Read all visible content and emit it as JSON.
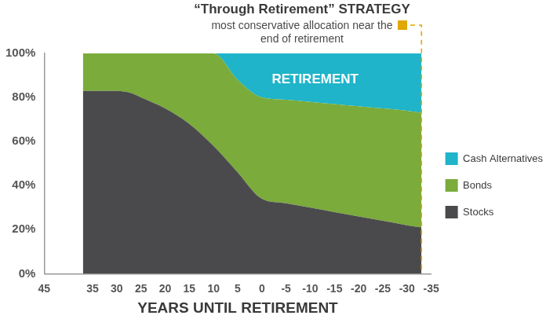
{
  "chart_data": {
    "type": "area",
    "title": "“Through Retirement” STRATEGY",
    "subtitle": "most conservative allocation near the end of retirement",
    "annotations": [
      "RETIREMENT"
    ],
    "x_label": "YEARS UNTIL RETIREMENT",
    "x": [
      37,
      30,
      27,
      25,
      20,
      15,
      10,
      5,
      0,
      -5,
      -10,
      -15,
      -20,
      -25,
      -30,
      -33
    ],
    "series": [
      {
        "name": "Stocks",
        "color": "#4a4a4c",
        "values": [
          83,
          83,
          82,
          80,
          75,
          68,
          58,
          46,
          34,
          32,
          30,
          28,
          26,
          24,
          22,
          21
        ]
      },
      {
        "name": "Bonds",
        "color": "#7aab3b",
        "values": [
          17,
          17,
          18,
          20,
          25,
          32,
          42,
          42,
          46,
          47,
          48,
          49,
          50,
          51,
          52,
          52
        ]
      },
      {
        "name": "Cash Alternatives",
        "color": "#1fb4c9",
        "values": [
          0,
          0,
          0,
          0,
          0,
          0,
          0,
          12,
          20,
          21,
          22,
          23,
          24,
          25,
          26,
          27
        ]
      }
    ],
    "xlim": [
      45,
      -35
    ],
    "xticks": [
      45,
      35,
      30,
      25,
      20,
      15,
      10,
      5,
      0,
      -5,
      -10,
      -15,
      -20,
      -25,
      -30,
      -35
    ],
    "ylim": [
      0,
      100
    ],
    "yticks": [
      {
        "value": 0,
        "label": "0%"
      },
      {
        "value": 20,
        "label": "20%"
      },
      {
        "value": 40,
        "label": "40%"
      },
      {
        "value": 60,
        "label": "60%"
      },
      {
        "value": 80,
        "label": "80%"
      },
      {
        "value": 100,
        "label": "100%"
      }
    ],
    "stacked": true,
    "grid": false,
    "legend": "right"
  }
}
